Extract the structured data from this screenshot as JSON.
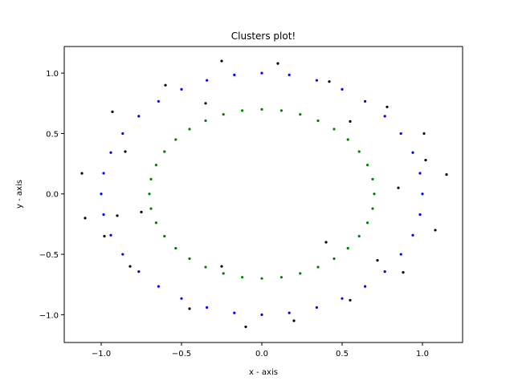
{
  "chart_data": {
    "type": "scatter",
    "title": "Clusters plot!",
    "xlabel": "x - axis",
    "ylabel": "y - axis",
    "xlim": [
      -1.23,
      1.25
    ],
    "ylim": [
      -1.23,
      1.22
    ],
    "xticks": [
      -1.0,
      -0.5,
      0.0,
      0.5,
      1.0
    ],
    "xtick_labels": [
      "−1.0",
      "−0.5",
      "0.0",
      "0.5",
      "1.0"
    ],
    "yticks": [
      -1.0,
      -0.5,
      0.0,
      0.5,
      1.0
    ],
    "ytick_labels": [
      "−1.0",
      "−0.5",
      "0.0",
      "0.5",
      "1.0"
    ],
    "grid": false,
    "legend": "none",
    "series": [
      {
        "color": "#0000ff",
        "points": [
          [
            1.0,
            0.0
          ],
          [
            0.985,
            0.171
          ],
          [
            0.94,
            0.342
          ],
          [
            0.866,
            0.5
          ],
          [
            0.766,
            0.643
          ],
          [
            0.643,
            0.766
          ],
          [
            0.5,
            0.866
          ],
          [
            0.342,
            0.94
          ],
          [
            0.171,
            0.985
          ],
          [
            0.0,
            1.0
          ],
          [
            -0.171,
            0.985
          ],
          [
            -0.342,
            0.94
          ],
          [
            -0.5,
            0.866
          ],
          [
            -0.643,
            0.766
          ],
          [
            -0.766,
            0.643
          ],
          [
            -0.866,
            0.5
          ],
          [
            -0.94,
            0.342
          ],
          [
            -0.985,
            0.171
          ],
          [
            -1.0,
            0.0
          ],
          [
            -0.985,
            -0.171
          ],
          [
            -0.94,
            -0.342
          ],
          [
            -0.866,
            -0.5
          ],
          [
            -0.766,
            -0.643
          ],
          [
            -0.643,
            -0.766
          ],
          [
            -0.5,
            -0.866
          ],
          [
            -0.342,
            -0.94
          ],
          [
            -0.171,
            -0.985
          ],
          [
            0.0,
            -1.0
          ],
          [
            0.171,
            -0.985
          ],
          [
            0.342,
            -0.94
          ],
          [
            0.5,
            -0.866
          ],
          [
            0.643,
            -0.766
          ],
          [
            0.766,
            -0.643
          ],
          [
            0.866,
            -0.5
          ],
          [
            0.94,
            -0.342
          ],
          [
            0.985,
            -0.171
          ]
        ]
      },
      {
        "color": "#008000",
        "points": [
          [
            0.7,
            0.0
          ],
          [
            0.69,
            0.122
          ],
          [
            0.658,
            0.239
          ],
          [
            0.606,
            0.35
          ],
          [
            0.536,
            0.45
          ],
          [
            0.45,
            0.536
          ],
          [
            0.35,
            0.606
          ],
          [
            0.239,
            0.658
          ],
          [
            0.122,
            0.69
          ],
          [
            0.0,
            0.7
          ],
          [
            -0.122,
            0.69
          ],
          [
            -0.239,
            0.658
          ],
          [
            -0.35,
            0.606
          ],
          [
            -0.45,
            0.536
          ],
          [
            -0.536,
            0.45
          ],
          [
            -0.606,
            0.35
          ],
          [
            -0.658,
            0.239
          ],
          [
            -0.69,
            0.122
          ],
          [
            -0.7,
            0.0
          ],
          [
            -0.69,
            -0.122
          ],
          [
            -0.658,
            -0.239
          ],
          [
            -0.606,
            -0.35
          ],
          [
            -0.536,
            -0.45
          ],
          [
            -0.45,
            -0.536
          ],
          [
            -0.35,
            -0.606
          ],
          [
            -0.239,
            -0.658
          ],
          [
            -0.122,
            -0.69
          ],
          [
            0.0,
            -0.7
          ],
          [
            0.122,
            -0.69
          ],
          [
            0.239,
            -0.658
          ],
          [
            0.35,
            -0.606
          ],
          [
            0.45,
            -0.536
          ],
          [
            0.536,
            -0.45
          ],
          [
            0.606,
            -0.35
          ],
          [
            0.658,
            -0.239
          ],
          [
            0.69,
            -0.122
          ]
        ]
      },
      {
        "color": "#000000",
        "points": [
          [
            -1.12,
            0.17
          ],
          [
            -1.1,
            -0.2
          ],
          [
            -0.93,
            0.68
          ],
          [
            -0.6,
            0.9
          ],
          [
            -0.25,
            1.1
          ],
          [
            0.1,
            1.08
          ],
          [
            0.42,
            0.93
          ],
          [
            0.78,
            0.72
          ],
          [
            1.01,
            0.5
          ],
          [
            1.15,
            0.16
          ],
          [
            1.08,
            -0.3
          ],
          [
            0.88,
            -0.65
          ],
          [
            0.55,
            -0.88
          ],
          [
            0.2,
            -1.05
          ],
          [
            -0.1,
            -1.1
          ],
          [
            -0.45,
            -0.95
          ],
          [
            -0.82,
            -0.6
          ],
          [
            -0.98,
            -0.35
          ],
          [
            -0.85,
            0.35
          ],
          [
            -0.35,
            0.75
          ],
          [
            0.55,
            0.6
          ],
          [
            0.85,
            0.05
          ],
          [
            0.4,
            -0.4
          ],
          [
            -0.25,
            -0.6
          ],
          [
            -0.75,
            -0.15
          ],
          [
            0.72,
            -0.55
          ],
          [
            1.02,
            0.28
          ],
          [
            -0.9,
            -0.18
          ]
        ]
      }
    ]
  }
}
